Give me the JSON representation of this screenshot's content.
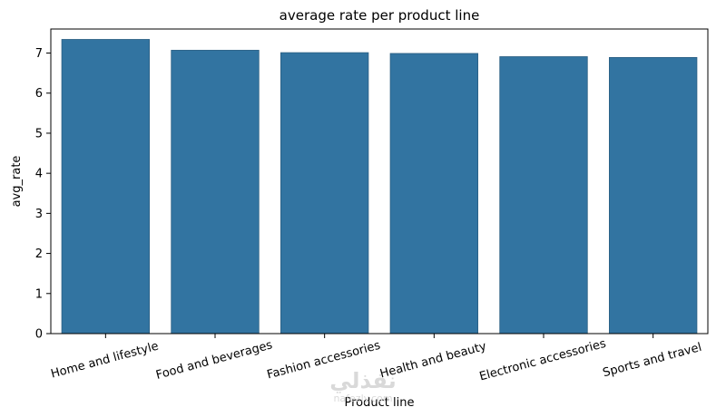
{
  "chart_data": {
    "type": "bar",
    "title": "average rate per product line",
    "xlabel": "Product line",
    "ylabel": "avg_rate",
    "categories": [
      "Home and lifestyle",
      "Food and beverages",
      "Fashion accessories",
      "Health and beauty",
      "Electronic accessories",
      "Sports and travel"
    ],
    "values": [
      7.34,
      7.07,
      7.01,
      6.99,
      6.91,
      6.89
    ],
    "ylim": [
      0,
      7.6
    ],
    "yticks": [
      0,
      1,
      2,
      3,
      4,
      5,
      6,
      7
    ],
    "grid": false,
    "bar_color": "#3274a1",
    "edge_color": "#2a5e82"
  },
  "watermark": {
    "arabic": "نفذلي",
    "latin": "nafezly.com"
  }
}
